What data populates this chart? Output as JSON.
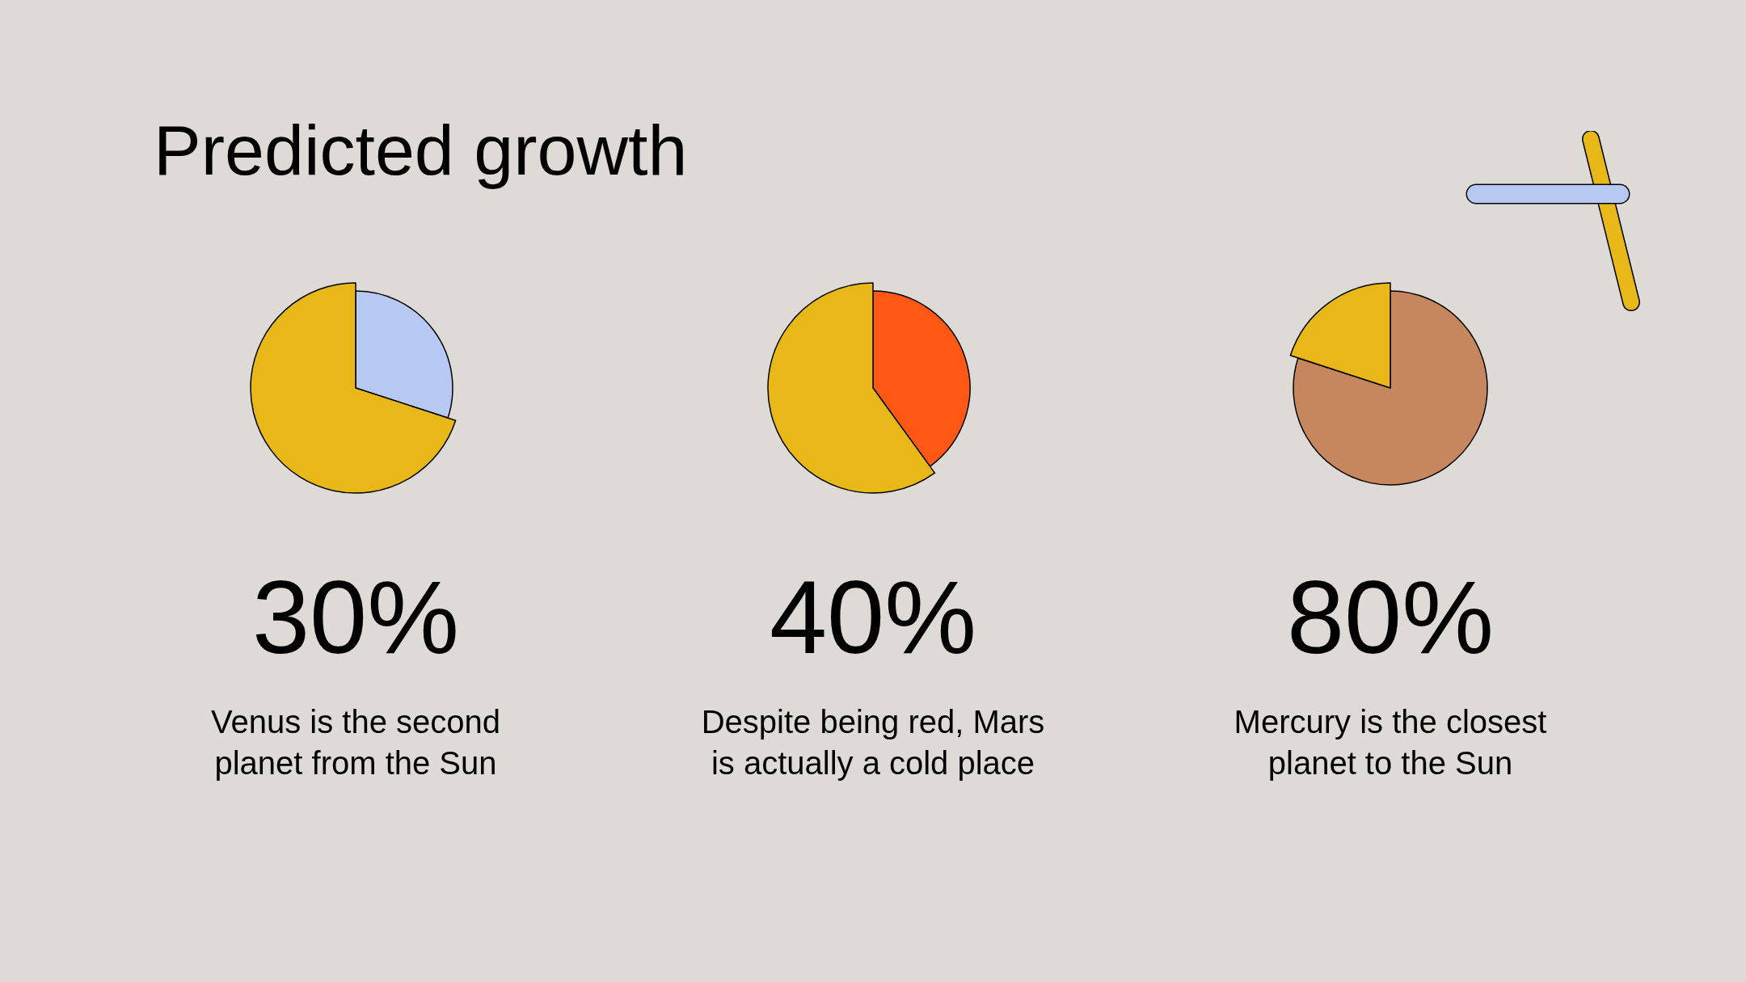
{
  "chart_data": [
    {
      "type": "other",
      "title": "Predicted growth"
    },
    {
      "type": "pie",
      "categories": [
        null,
        null
      ],
      "values": [
        30,
        70
      ],
      "colors": [
        "#b7c9f2",
        "#e8b718"
      ],
      "annotations": [
        "30%",
        "Venus is the second planet from the Sun"
      ]
    },
    {
      "type": "pie",
      "categories": [
        null,
        null
      ],
      "values": [
        40,
        60
      ],
      "colors": [
        "#ff5714",
        "#e8b718"
      ],
      "annotations": [
        "40%",
        "Despite being red, Mars is actually a cold place"
      ]
    },
    {
      "type": "pie",
      "categories": [
        null,
        null
      ],
      "values": [
        80,
        20
      ],
      "colors": [
        "#c6865e",
        "#e8b718"
      ],
      "annotations": [
        "80%",
        "Mercury is the closest planet to the Sun"
      ]
    }
  ]
}
